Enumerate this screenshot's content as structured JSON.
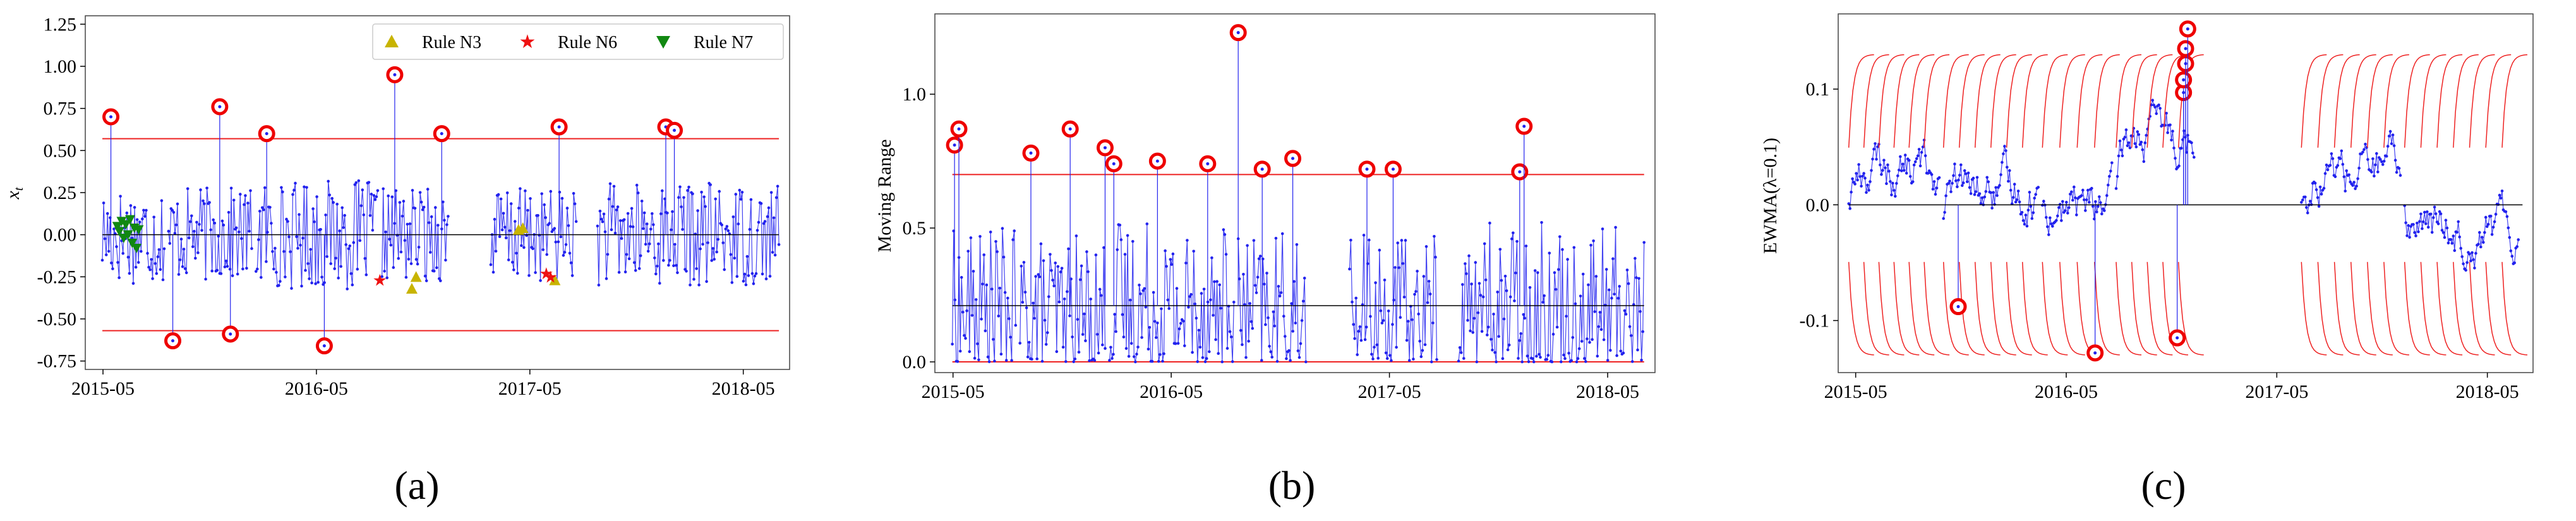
{
  "colors": {
    "data": "#2222ee",
    "limit": "#ee2222",
    "center": "#000000",
    "outlier_ring": "#ee0000",
    "rule_n3": "#c8b400",
    "rule_n6": "#ee1111",
    "rule_n7": "#118811",
    "legend_border": "#cccccc"
  },
  "chart_data": [
    {
      "panel": "a",
      "caption": "(a)",
      "type": "scatter",
      "ylabel": "x_t",
      "ylabel_main": "x",
      "ylabel_sub": "t",
      "xlabel": "",
      "x_tick_labels": [
        "2015-05",
        "2016-05",
        "2017-05",
        "2018-05"
      ],
      "x_ticks": [
        2015.333,
        2016.333,
        2017.333,
        2018.333
      ],
      "xlim": [
        2015.25,
        2018.55
      ],
      "y_tick_labels": [
        "-0.75",
        "-0.50",
        "-0.25",
        "0.00",
        "0.25",
        "0.50",
        "0.75",
        "1.00",
        "1.25"
      ],
      "ylim": [
        -0.8,
        1.3
      ],
      "center_line": 0.0,
      "ucl": 0.57,
      "lcl": -0.57,
      "legend": {
        "position": "top-right",
        "entries": [
          {
            "label": "Rule N3",
            "marker": "triangle-up",
            "color_key": "rule_n3"
          },
          {
            "label": "Rule N6",
            "marker": "star",
            "color_key": "rule_n6"
          },
          {
            "label": "Rule N7",
            "marker": "triangle-down",
            "color_key": "rule_n7"
          }
        ]
      },
      "segments": [
        [
          2015.33,
          2015.62,
          0.21
        ],
        [
          2015.64,
          2016.03,
          0.2
        ],
        [
          2016.05,
          2016.62,
          0.23
        ],
        [
          2016.64,
          2016.95,
          0.2
        ],
        [
          2017.15,
          2017.55,
          0.2
        ],
        [
          2017.65,
          2018.5,
          0.22
        ]
      ],
      "out_of_control": [
        {
          "x": 2015.37,
          "y": 0.7
        },
        {
          "x": 2015.66,
          "y": -0.63
        },
        {
          "x": 2015.88,
          "y": 0.76
        },
        {
          "x": 2015.93,
          "y": -0.59
        },
        {
          "x": 2016.1,
          "y": 0.6
        },
        {
          "x": 2016.37,
          "y": -0.66
        },
        {
          "x": 2016.7,
          "y": 0.95
        },
        {
          "x": 2016.92,
          "y": 0.6
        },
        {
          "x": 2017.47,
          "y": 0.64
        },
        {
          "x": 2017.97,
          "y": 0.64
        },
        {
          "x": 2018.01,
          "y": 0.62
        }
      ],
      "rule_n3_points": [
        {
          "x": 2016.78,
          "y": -0.32
        },
        {
          "x": 2016.8,
          "y": -0.25
        },
        {
          "x": 2017.28,
          "y": 0.03
        },
        {
          "x": 2017.3,
          "y": 0.04
        },
        {
          "x": 2017.45,
          "y": -0.27
        }
      ],
      "rule_n6_points": [
        {
          "x": 2016.63,
          "y": -0.27
        },
        {
          "x": 2017.41,
          "y": -0.23
        },
        {
          "x": 2017.43,
          "y": -0.25
        }
      ],
      "rule_n7_points": [
        {
          "x": 2015.4,
          "y": 0.05
        },
        {
          "x": 2015.41,
          "y": 0.02
        },
        {
          "x": 2015.42,
          "y": 0.08
        },
        {
          "x": 2015.43,
          "y": -0.02
        },
        {
          "x": 2015.44,
          "y": 0.06
        },
        {
          "x": 2015.45,
          "y": 0.0
        },
        {
          "x": 2015.46,
          "y": 0.09
        },
        {
          "x": 2015.47,
          "y": -0.05
        },
        {
          "x": 2015.48,
          "y": 0.04
        },
        {
          "x": 2015.49,
          "y": -0.08
        },
        {
          "x": 2015.5,
          "y": 0.03
        }
      ]
    },
    {
      "panel": "b",
      "caption": "(b)",
      "type": "scatter",
      "ylabel": "Moving Range",
      "xlabel": "",
      "x_tick_labels": [
        "2015-05",
        "2016-05",
        "2017-05",
        "2018-05"
      ],
      "x_ticks": [
        2015.333,
        2016.333,
        2017.333,
        2018.333
      ],
      "xlim": [
        2015.25,
        2018.55
      ],
      "y_tick_labels": [
        "0.0",
        "0.5",
        "1.0"
      ],
      "y_ticks": [
        0.0,
        0.5,
        1.0
      ],
      "ylim": [
        -0.04,
        1.3
      ],
      "center_line": 0.21,
      "ucl": 0.7,
      "lcl": 0.0,
      "segments": [
        [
          2015.33,
          2015.62,
          0.21
        ],
        [
          2015.64,
          2016.03,
          0.2
        ],
        [
          2016.05,
          2016.62,
          0.23
        ],
        [
          2016.64,
          2016.95,
          0.2
        ],
        [
          2017.15,
          2017.55,
          0.2
        ],
        [
          2017.65,
          2018.5,
          0.22
        ]
      ],
      "out_of_control": [
        {
          "x": 2015.34,
          "y": 0.81
        },
        {
          "x": 2015.36,
          "y": 0.87
        },
        {
          "x": 2015.69,
          "y": 0.78
        },
        {
          "x": 2015.87,
          "y": 0.87
        },
        {
          "x": 2016.03,
          "y": 0.8
        },
        {
          "x": 2016.07,
          "y": 0.74
        },
        {
          "x": 2016.27,
          "y": 0.75
        },
        {
          "x": 2016.5,
          "y": 0.74
        },
        {
          "x": 2016.64,
          "y": 1.23
        },
        {
          "x": 2016.75,
          "y": 0.72
        },
        {
          "x": 2016.89,
          "y": 0.76
        },
        {
          "x": 2017.23,
          "y": 0.72
        },
        {
          "x": 2017.35,
          "y": 0.72
        },
        {
          "x": 2017.93,
          "y": 0.71
        },
        {
          "x": 2017.95,
          "y": 0.88
        }
      ]
    },
    {
      "panel": "c",
      "caption": "(c)",
      "type": "scatter",
      "ylabel": "EWMA(λ=0.1)",
      "xlabel": "",
      "x_tick_labels": [
        "2015-05",
        "2016-05",
        "2017-05",
        "2018-05"
      ],
      "x_ticks": [
        2015.333,
        2016.333,
        2017.333,
        2018.333
      ],
      "xlim": [
        2015.25,
        2018.55
      ],
      "y_tick_labels": [
        "-0.1",
        "0.0",
        "0.1"
      ],
      "y_ticks": [
        -0.1,
        0.0,
        0.1
      ],
      "ylim": [
        -0.145,
        0.165
      ],
      "center_line": 0.0,
      "ucl": 0.13,
      "lcl": -0.13,
      "segments": [
        [
          2015.3,
          2015.73,
          0.03
        ],
        [
          2015.75,
          2016.2,
          0.01
        ],
        [
          2016.22,
          2016.55,
          0.0
        ],
        [
          2016.57,
          2016.94,
          0.06
        ],
        [
          2017.45,
          2017.92,
          0.03
        ],
        [
          2017.94,
          2018.48,
          -0.02
        ]
      ],
      "out_of_control": [
        {
          "x": 2015.82,
          "y": -0.088
        },
        {
          "x": 2016.47,
          "y": -0.128
        },
        {
          "x": 2016.86,
          "y": -0.115
        },
        {
          "x": 2016.89,
          "y": 0.097
        },
        {
          "x": 2016.89,
          "y": 0.108
        },
        {
          "x": 2016.9,
          "y": 0.122
        },
        {
          "x": 2016.9,
          "y": 0.135
        },
        {
          "x": 2016.91,
          "y": 0.152
        }
      ]
    }
  ]
}
